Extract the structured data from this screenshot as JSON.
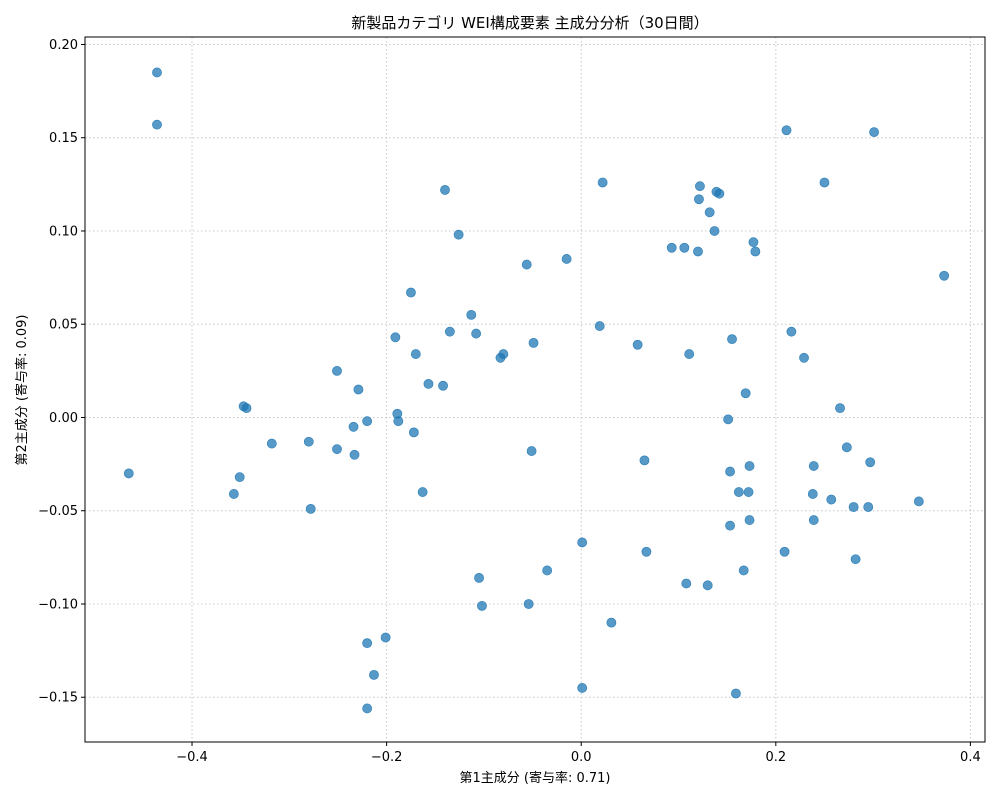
{
  "chart_data": {
    "type": "scatter",
    "title": "新製品カテゴリ WEI構成要素 主成分分析（30日間）",
    "xlabel": "第1主成分 (寄与率: 0.71)",
    "ylabel": "第2主成分 (寄与率: 0.09)",
    "xlim": [
      -0.51,
      0.415
    ],
    "ylim": [
      -0.174,
      0.204
    ],
    "xticks": [
      -0.4,
      -0.2,
      0.0,
      0.2,
      0.4
    ],
    "xtick_labels": [
      "−0.4",
      "−0.2",
      "0.0",
      "0.2",
      "0.4"
    ],
    "yticks": [
      -0.15,
      -0.1,
      -0.05,
      0.0,
      0.05,
      0.1,
      0.15,
      0.2
    ],
    "ytick_labels": [
      "−0.15",
      "−0.10",
      "−0.05",
      "0.00",
      "0.05",
      "0.10",
      "0.15",
      "0.20"
    ],
    "grid": true,
    "color": "#1f77b4",
    "points": [
      {
        "x": -0.436,
        "y": 0.185
      },
      {
        "x": -0.436,
        "y": 0.157
      },
      {
        "x": -0.465,
        "y": -0.03
      },
      {
        "x": -0.357,
        "y": -0.041
      },
      {
        "x": -0.351,
        "y": -0.032
      },
      {
        "x": -0.347,
        "y": 0.006
      },
      {
        "x": -0.344,
        "y": 0.005
      },
      {
        "x": -0.318,
        "y": -0.014
      },
      {
        "x": -0.28,
        "y": -0.013
      },
      {
        "x": -0.278,
        "y": -0.049
      },
      {
        "x": -0.251,
        "y": 0.025
      },
      {
        "x": -0.251,
        "y": -0.017
      },
      {
        "x": -0.234,
        "y": -0.005
      },
      {
        "x": -0.233,
        "y": -0.02
      },
      {
        "x": -0.229,
        "y": 0.015
      },
      {
        "x": -0.22,
        "y": -0.002
      },
      {
        "x": -0.22,
        "y": -0.121
      },
      {
        "x": -0.22,
        "y": -0.156
      },
      {
        "x": -0.213,
        "y": -0.138
      },
      {
        "x": -0.201,
        "y": -0.118
      },
      {
        "x": -0.191,
        "y": 0.043
      },
      {
        "x": -0.189,
        "y": 0.002
      },
      {
        "x": -0.188,
        "y": -0.002
      },
      {
        "x": -0.175,
        "y": 0.067
      },
      {
        "x": -0.172,
        "y": -0.008
      },
      {
        "x": -0.17,
        "y": 0.034
      },
      {
        "x": -0.163,
        "y": -0.04
      },
      {
        "x": -0.157,
        "y": 0.018
      },
      {
        "x": -0.142,
        "y": 0.017
      },
      {
        "x": -0.14,
        "y": 0.122
      },
      {
        "x": -0.135,
        "y": 0.046
      },
      {
        "x": -0.126,
        "y": 0.098
      },
      {
        "x": -0.113,
        "y": 0.055
      },
      {
        "x": -0.108,
        "y": 0.045
      },
      {
        "x": -0.105,
        "y": -0.086
      },
      {
        "x": -0.102,
        "y": -0.101
      },
      {
        "x": -0.083,
        "y": 0.032
      },
      {
        "x": -0.08,
        "y": 0.034
      },
      {
        "x": -0.056,
        "y": 0.082
      },
      {
        "x": -0.054,
        "y": -0.1
      },
      {
        "x": -0.051,
        "y": -0.018
      },
      {
        "x": -0.049,
        "y": 0.04
      },
      {
        "x": -0.035,
        "y": -0.082
      },
      {
        "x": -0.015,
        "y": 0.085
      },
      {
        "x": 0.001,
        "y": -0.067
      },
      {
        "x": 0.001,
        "y": -0.145
      },
      {
        "x": 0.019,
        "y": 0.049
      },
      {
        "x": 0.022,
        "y": 0.126
      },
      {
        "x": 0.031,
        "y": -0.11
      },
      {
        "x": 0.058,
        "y": 0.039
      },
      {
        "x": 0.065,
        "y": -0.023
      },
      {
        "x": 0.067,
        "y": -0.072
      },
      {
        "x": 0.093,
        "y": 0.091
      },
      {
        "x": 0.106,
        "y": 0.091
      },
      {
        "x": 0.108,
        "y": -0.089
      },
      {
        "x": 0.111,
        "y": 0.034
      },
      {
        "x": 0.12,
        "y": 0.089
      },
      {
        "x": 0.121,
        "y": 0.117
      },
      {
        "x": 0.122,
        "y": 0.124
      },
      {
        "x": 0.13,
        "y": -0.09
      },
      {
        "x": 0.132,
        "y": 0.11
      },
      {
        "x": 0.137,
        "y": 0.1
      },
      {
        "x": 0.139,
        "y": 0.121
      },
      {
        "x": 0.142,
        "y": 0.12
      },
      {
        "x": 0.151,
        "y": -0.001
      },
      {
        "x": 0.153,
        "y": -0.029
      },
      {
        "x": 0.153,
        "y": -0.058
      },
      {
        "x": 0.155,
        "y": 0.042
      },
      {
        "x": 0.159,
        "y": -0.148
      },
      {
        "x": 0.162,
        "y": -0.04
      },
      {
        "x": 0.167,
        "y": -0.082
      },
      {
        "x": 0.169,
        "y": 0.013
      },
      {
        "x": 0.172,
        "y": -0.04
      },
      {
        "x": 0.173,
        "y": -0.026
      },
      {
        "x": 0.173,
        "y": -0.055
      },
      {
        "x": 0.177,
        "y": 0.094
      },
      {
        "x": 0.179,
        "y": 0.089
      },
      {
        "x": 0.209,
        "y": -0.072
      },
      {
        "x": 0.211,
        "y": 0.154
      },
      {
        "x": 0.216,
        "y": 0.046
      },
      {
        "x": 0.229,
        "y": 0.032
      },
      {
        "x": 0.238,
        "y": -0.041
      },
      {
        "x": 0.239,
        "y": -0.026
      },
      {
        "x": 0.239,
        "y": -0.055
      },
      {
        "x": 0.25,
        "y": 0.126
      },
      {
        "x": 0.257,
        "y": -0.044
      },
      {
        "x": 0.266,
        "y": 0.005
      },
      {
        "x": 0.273,
        "y": -0.016
      },
      {
        "x": 0.28,
        "y": -0.048
      },
      {
        "x": 0.282,
        "y": -0.076
      },
      {
        "x": 0.295,
        "y": -0.048
      },
      {
        "x": 0.297,
        "y": -0.024
      },
      {
        "x": 0.301,
        "y": 0.153
      },
      {
        "x": 0.347,
        "y": -0.045
      },
      {
        "x": 0.373,
        "y": 0.076
      }
    ]
  }
}
